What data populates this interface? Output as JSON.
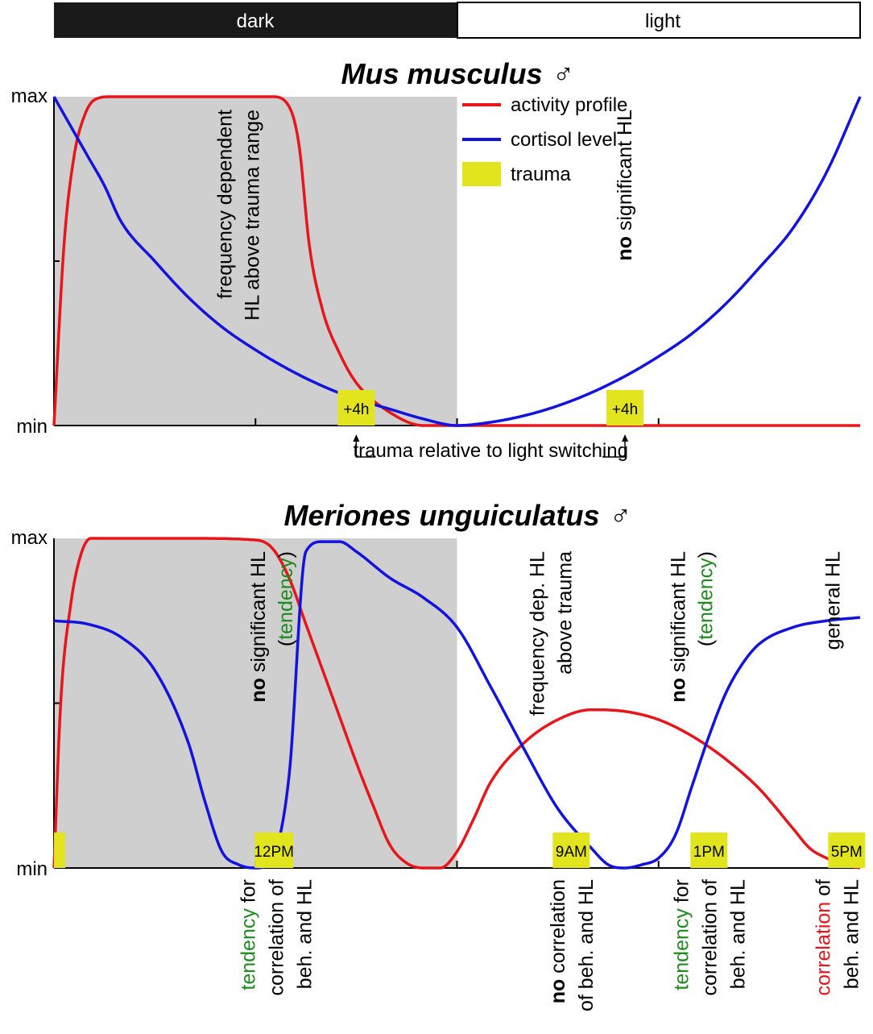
{
  "light_bar": {
    "dark_label": "dark",
    "light_label": "light",
    "dark_color": "#1a1a1a",
    "light_color": "#ffffff"
  },
  "colors": {
    "activity": "#e8151b",
    "cortisol": "#1313e0",
    "trauma": "#e2e41e",
    "shading": "#cfcfcf",
    "green": "#1f8a1f",
    "red": "#e8151b"
  },
  "chart_data": [
    {
      "type": "line",
      "title": "Mus musculus ♂",
      "y_tick_labels": [
        "min",
        "max"
      ],
      "ylim": [
        0,
        1
      ],
      "x_unit": "hours of 24 h light/dark cycle (dark 0–12, light 12–24)",
      "xlim": [
        0,
        24
      ],
      "shaded_region": [
        0,
        12
      ],
      "legend": {
        "placement": "top-right",
        "items": [
          {
            "label": "activity profile",
            "kind": "line",
            "color": "#e8151b"
          },
          {
            "label": "cortisol level",
            "kind": "line",
            "color": "#1313e0"
          },
          {
            "label": "trauma",
            "kind": "patch",
            "color": "#e2e41e"
          }
        ]
      },
      "series": [
        {
          "name": "activity profile",
          "color": "#e8151b",
          "x": [
            0,
            0.3,
            0.6,
            0.9,
            1.2,
            1.7,
            2.5,
            4,
            6,
            6.5,
            7,
            7.3,
            7.6,
            8,
            8.5,
            9,
            10,
            11,
            12,
            14,
            18,
            24
          ],
          "y": [
            0,
            0.55,
            0.82,
            0.94,
            0.99,
            1,
            1,
            1,
            1,
            1,
            0.97,
            0.85,
            0.55,
            0.35,
            0.22,
            0.13,
            0.04,
            0,
            0,
            0,
            0,
            0
          ]
        },
        {
          "name": "cortisol level",
          "color": "#1313e0",
          "x": [
            0,
            0.5,
            1,
            1.5,
            2,
            3,
            4,
            5,
            6,
            7,
            8,
            9,
            10,
            11,
            12,
            13,
            14,
            15,
            16,
            17,
            18,
            19,
            20,
            21,
            22,
            23,
            24
          ],
          "y": [
            1,
            0.91,
            0.82,
            0.73,
            0.62,
            0.5,
            0.39,
            0.3,
            0.23,
            0.17,
            0.12,
            0.08,
            0.05,
            0.02,
            0,
            0.01,
            0.03,
            0.06,
            0.1,
            0.15,
            0.21,
            0.28,
            0.37,
            0.48,
            0.6,
            0.77,
            1
          ]
        }
      ],
      "trauma": [
        {
          "x": 9,
          "label": "+4h"
        },
        {
          "x": 17,
          "label": "+4h"
        }
      ],
      "annotations": [
        {
          "id": "m_freq",
          "x": 5.5,
          "lines": [
            [
              {
                "t": "frequency dependent"
              }
            ],
            [
              {
                "t": "HL above trauma range"
              }
            ]
          ]
        },
        {
          "id": "m_nosig",
          "x": 17,
          "lines": [
            [
              {
                "t": "no",
                "b": true
              },
              {
                "t": " significant HL"
              }
            ]
          ]
        }
      ],
      "bracket_label": "trauma relative to light switching"
    },
    {
      "type": "line",
      "title": "Meriones unguiculatus ♂",
      "y_tick_labels": [
        "min",
        "max"
      ],
      "ylim": [
        0,
        1
      ],
      "xlim": [
        0,
        24
      ],
      "shaded_region": [
        0,
        12
      ],
      "series": [
        {
          "name": "activity profile",
          "color": "#e8151b",
          "x": [
            0,
            0.2,
            0.5,
            0.8,
            1.1,
            1.5,
            2,
            4,
            6,
            6.5,
            7,
            7.5,
            8,
            8.5,
            9,
            9.5,
            10,
            10.5,
            11,
            11.5,
            12,
            12.5,
            13,
            14,
            15,
            16,
            17,
            18,
            19,
            20,
            21,
            22,
            22.5,
            23,
            23.5,
            24
          ],
          "y": [
            0,
            0.5,
            0.8,
            0.95,
            1,
            1,
            1,
            1,
            0.995,
            0.97,
            0.88,
            0.74,
            0.6,
            0.46,
            0.32,
            0.19,
            0.07,
            0.015,
            0,
            0,
            0.05,
            0.15,
            0.26,
            0.38,
            0.45,
            0.48,
            0.475,
            0.45,
            0.4,
            0.33,
            0.24,
            0.12,
            0.06,
            0.03,
            0.01,
            0
          ]
        },
        {
          "name": "cortisol level",
          "color": "#1313e0",
          "x": [
            0,
            1,
            2,
            3,
            4,
            4.5,
            5,
            5.5,
            6,
            6.5,
            7,
            7.5,
            8,
            8.5,
            9,
            10,
            11,
            12,
            13,
            14,
            15,
            16,
            16.5,
            17,
            17.5,
            18,
            18.5,
            19,
            19.5,
            20,
            20.5,
            21,
            22,
            23,
            24
          ],
          "y": [
            0.75,
            0.74,
            0.7,
            0.6,
            0.38,
            0.2,
            0.05,
            0.01,
            0,
            0.03,
            0.28,
            0.96,
            0.99,
            0.99,
            0.96,
            0.88,
            0.82,
            0.73,
            0.55,
            0.36,
            0.18,
            0.06,
            0.01,
            0,
            0.01,
            0.03,
            0.1,
            0.25,
            0.4,
            0.53,
            0.62,
            0.68,
            0.73,
            0.75,
            0.76
          ]
        }
      ],
      "trauma": [
        {
          "x": 0.15,
          "label": ""
        },
        {
          "x": 6.55,
          "label": "12PM"
        },
        {
          "x": 15.4,
          "label": "9AM"
        },
        {
          "x": 19.5,
          "label": "1PM"
        },
        {
          "x": 23.6,
          "label": "5PM"
        }
      ],
      "annotations": [
        {
          "id": "g_nosig1",
          "x": 6.5,
          "lines": [
            [
              {
                "t": "no",
                "b": true
              },
              {
                "t": " significant HL"
              }
            ],
            [
              {
                "t": "("
              },
              {
                "t": "tendency",
                "c": "green"
              },
              {
                "t": ")"
              }
            ]
          ]
        },
        {
          "id": "g_freqdep",
          "x": 14.8,
          "lines": [
            [
              {
                "t": "frequency dep. HL"
              }
            ],
            [
              {
                "t": "above trauma"
              }
            ]
          ]
        },
        {
          "id": "g_nosig2",
          "x": 19.0,
          "lines": [
            [
              {
                "t": "no",
                "b": true
              },
              {
                "t": " significant HL"
              }
            ],
            [
              {
                "t": "("
              },
              {
                "t": "tendency",
                "c": "green"
              },
              {
                "t": ")"
              }
            ]
          ]
        },
        {
          "id": "g_general",
          "x": 23.2,
          "lines": [
            [
              {
                "t": "general HL"
              }
            ]
          ]
        }
      ],
      "bottom_labels": [
        {
          "id": "b1",
          "x": 6.6,
          "lines": [
            [
              {
                "t": "tendency",
                "c": "green"
              },
              {
                "t": " for"
              }
            ],
            [
              {
                "t": "correlation of"
              }
            ],
            [
              {
                "t": "beh. and HL"
              }
            ]
          ]
        },
        {
          "id": "b2",
          "x": 15.4,
          "lines": [
            [
              {
                "t": "no",
                "b": true
              },
              {
                "t": " correlation"
              }
            ],
            [
              {
                "t": "of beh. and HL"
              }
            ]
          ]
        },
        {
          "id": "b3",
          "x": 19.5,
          "lines": [
            [
              {
                "t": "tendency",
                "c": "green"
              },
              {
                "t": " for"
              }
            ],
            [
              {
                "t": "correlation of"
              }
            ],
            [
              {
                "t": "beh. and HL"
              }
            ]
          ]
        },
        {
          "id": "b4",
          "x": 23.3,
          "lines": [
            [
              {
                "t": "correlation",
                "c": "red"
              },
              {
                "t": " of"
              }
            ],
            [
              {
                "t": "beh. and HL"
              }
            ]
          ]
        }
      ]
    }
  ]
}
